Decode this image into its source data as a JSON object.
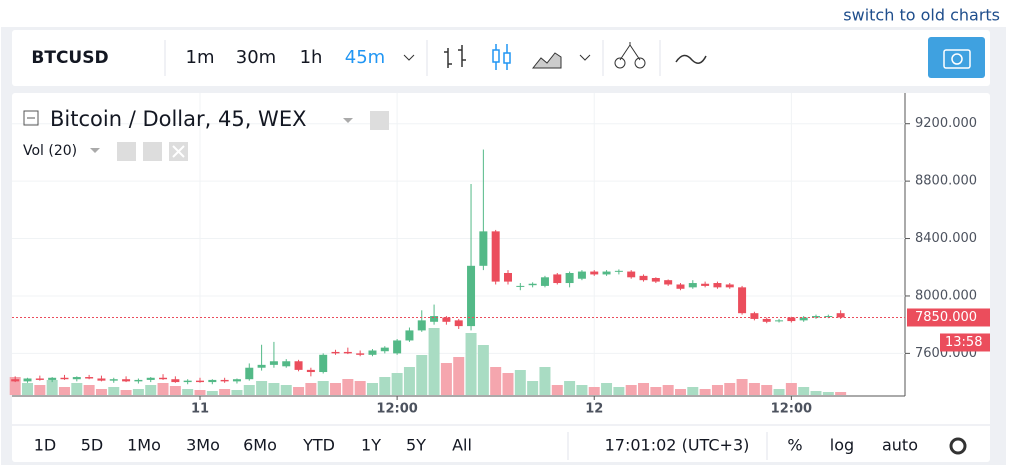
{
  "header": {
    "link": "switch to old charts"
  },
  "toolbar": {
    "symbol": "BTCUSD",
    "intervals": [
      "1m",
      "30m",
      "1h",
      "45m"
    ]
  },
  "chart_data": {
    "type": "candlestick",
    "title": "Bitcoin / Dollar, 45, WEX",
    "indicator": "Vol (20)",
    "categories": [
      null,
      null,
      null,
      null,
      null,
      null,
      null,
      null,
      null,
      null,
      null,
      null,
      null,
      null,
      null,
      "11",
      null,
      null,
      null,
      null,
      null,
      null,
      null,
      null,
      null,
      null,
      null,
      null,
      null,
      null,
      null,
      "12:00",
      null,
      null,
      null,
      null,
      null,
      null,
      null,
      null,
      null,
      null,
      null,
      null,
      null,
      null,
      null,
      "12",
      null,
      null,
      null,
      null,
      null,
      null,
      null,
      null,
      null,
      null,
      null,
      null,
      null,
      null,
      null,
      "12:00",
      null,
      null,
      null,
      null
    ],
    "open": [
      7420,
      7405,
      7425,
      7415,
      7430,
      7420,
      7435,
      7425,
      7410,
      7420,
      7405,
      7415,
      7430,
      7420,
      7400,
      7410,
      7400,
      7415,
      7405,
      7420,
      7500,
      7520,
      7510,
      7545,
      7485,
      7470,
      7610,
      7610,
      7600,
      7590,
      7615,
      7600,
      7690,
      7760,
      7820,
      7850,
      7830,
      7790,
      8210,
      8450,
      8160,
      8070,
      8075,
      8070,
      8150,
      8090,
      8120,
      8170,
      8150,
      8170,
      8170,
      8140,
      8125,
      8110,
      8080,
      8060,
      8085,
      8090,
      8080,
      8060,
      7880,
      7840,
      7825,
      7850,
      7830,
      7850,
      7855,
      7880
    ],
    "high": [
      7440,
      7430,
      7445,
      7435,
      7450,
      7440,
      7450,
      7445,
      7430,
      7440,
      7425,
      7435,
      7455,
      7440,
      7420,
      7430,
      7420,
      7430,
      7425,
      7530,
      7660,
      7680,
      7560,
      7555,
      7500,
      7600,
      7625,
      7640,
      7620,
      7630,
      7650,
      7700,
      7780,
      7900,
      7940,
      7860,
      7840,
      8780,
      9020,
      8460,
      8180,
      8090,
      8095,
      8140,
      8160,
      8170,
      8180,
      8180,
      8180,
      8185,
      8180,
      8150,
      8130,
      8115,
      8090,
      8110,
      8100,
      8100,
      8090,
      8070,
      7890,
      7850,
      7840,
      7855,
      7860,
      7870,
      7870,
      7900
    ],
    "low": [
      7400,
      7395,
      7410,
      7400,
      7415,
      7405,
      7420,
      7405,
      7395,
      7400,
      7390,
      7400,
      7415,
      7395,
      7385,
      7395,
      7385,
      7395,
      7390,
      7410,
      7480,
      7500,
      7500,
      7475,
      7440,
      7460,
      7590,
      7595,
      7580,
      7580,
      7600,
      7590,
      7680,
      7750,
      7800,
      7800,
      7770,
      7760,
      8180,
      8080,
      8080,
      8040,
      8060,
      8060,
      8080,
      8060,
      8110,
      8140,
      8140,
      8150,
      8120,
      8100,
      8090,
      8070,
      8040,
      8050,
      8060,
      8050,
      8050,
      7870,
      7830,
      7810,
      7815,
      7815,
      7820,
      7840,
      7845,
      7840
    ],
    "close": [
      7405,
      7425,
      7415,
      7430,
      7420,
      7435,
      7425,
      7410,
      7420,
      7405,
      7415,
      7430,
      7420,
      7400,
      7410,
      7400,
      7415,
      7405,
      7420,
      7500,
      7520,
      7545,
      7545,
      7485,
      7470,
      7590,
      7600,
      7600,
      7590,
      7620,
      7640,
      7690,
      7760,
      7830,
      7860,
      7820,
      7790,
      8210,
      8450,
      8100,
      8100,
      8070,
      8085,
      8130,
      8090,
      8160,
      8170,
      8150,
      8170,
      8175,
      8130,
      8110,
      8100,
      8080,
      8050,
      8090,
      8070,
      8060,
      8060,
      7880,
      7840,
      7820,
      7830,
      7825,
      7850,
      7860,
      7860,
      7850
    ],
    "volume": [
      18,
      12,
      10,
      15,
      8,
      12,
      10,
      6,
      8,
      5,
      6,
      10,
      12,
      9,
      6,
      5,
      4,
      6,
      5,
      10,
      14,
      12,
      10,
      8,
      12,
      14,
      12,
      16,
      14,
      12,
      18,
      22,
      28,
      40,
      67,
      32,
      38,
      62,
      50,
      28,
      22,
      25,
      14,
      28,
      10,
      14,
      10,
      8,
      12,
      8,
      10,
      12,
      8,
      10,
      6,
      8,
      6,
      10,
      12,
      16,
      12,
      10,
      6,
      12,
      8,
      4,
      3,
      3
    ],
    "volume_lim": [
      0,
      100
    ],
    "up_color": "#53b987",
    "down_color": "#eb4d5c",
    "volume_up_color": "#a9dcc3",
    "volume_down_color": "#f5a6ae",
    "ylim": [
      7310,
      9400
    ],
    "yticks": [
      {
        "value": 7600,
        "label": "7600.000"
      },
      {
        "value": 8000,
        "label": "8000.000"
      },
      {
        "value": 8400,
        "label": "8400.000"
      },
      {
        "value": 8800,
        "label": "8800.000"
      },
      {
        "value": 9200,
        "label": "9200.000"
      }
    ],
    "grid": true,
    "last_price": 7850,
    "last_price_label": "7850.000",
    "countdown": "13:58"
  },
  "footer": {
    "ranges": [
      "1D",
      "5D",
      "1Mo",
      "3Mo",
      "6Mo",
      "YTD",
      "1Y",
      "5Y",
      "All"
    ],
    "clock": "17:01:02 (UTC+3)",
    "scale_options": [
      "%",
      "log",
      "auto"
    ]
  }
}
